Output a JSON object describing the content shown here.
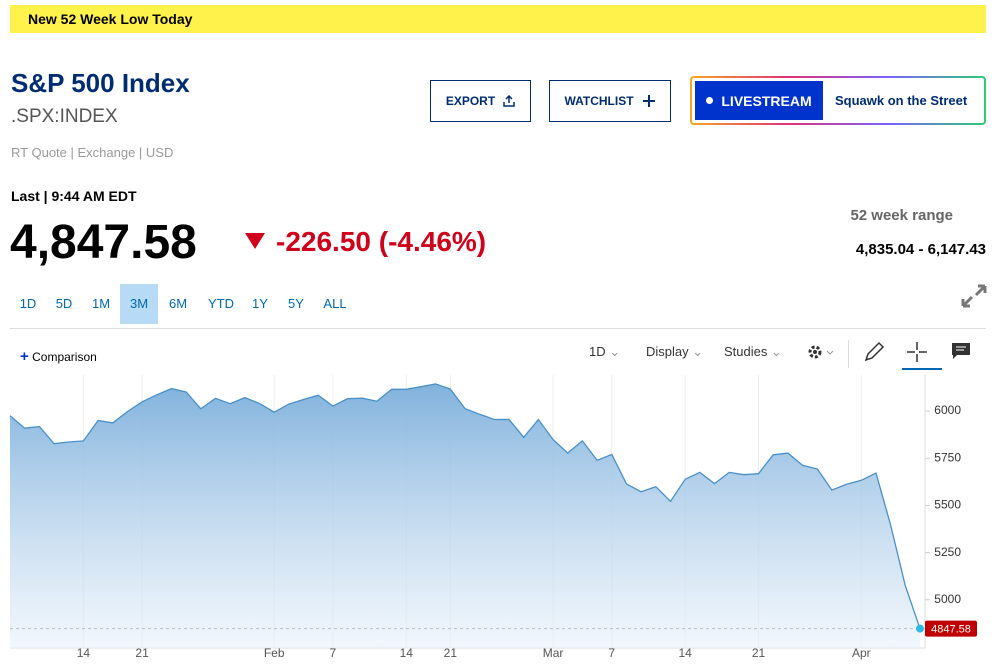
{
  "banner": "New 52 Week Low Today",
  "header": {
    "title": "S&P 500 Index",
    "symbol": ".SPX:INDEX",
    "quote_info": "RT Quote | Exchange | USD"
  },
  "buttons": {
    "export": "EXPORT",
    "watchlist": "WATCHLIST",
    "livestream": "LIVESTREAM",
    "show": "Squawk on the Street"
  },
  "quote": {
    "last_label": "Last | 9:44 AM EDT",
    "price": "4,847.58",
    "change": "-226.50",
    "change_pct": "(-4.46%)",
    "range_label": "52 week range",
    "range": "4,835.04 - 6,147.43"
  },
  "tabs": [
    "1D",
    "5D",
    "1M",
    "3M",
    "6M",
    "YTD",
    "1Y",
    "5Y",
    "ALL"
  ],
  "selected_tab": "3M",
  "toolbar": {
    "comparison": "Comparison",
    "interval": "1D",
    "display": "Display",
    "studies": "Studies"
  },
  "chart_data": {
    "type": "area",
    "color": "#4a90c8",
    "categories": [
      null,
      null,
      null,
      null,
      null,
      "14",
      null,
      null,
      null,
      "21",
      null,
      null,
      null,
      null,
      null,
      null,
      null,
      null,
      "Feb",
      null,
      null,
      null,
      "7",
      null,
      null,
      null,
      null,
      "14",
      null,
      null,
      "21",
      null,
      null,
      null,
      null,
      null,
      null,
      "Mar",
      null,
      null,
      null,
      "7",
      null,
      null,
      null,
      null,
      "14",
      null,
      null,
      null,
      null,
      "21",
      null,
      null,
      null,
      null,
      null,
      null,
      "Apr",
      null,
      null,
      null,
      null
    ],
    "values": [
      5975,
      5909,
      5918,
      5827,
      5836,
      5842,
      5950,
      5937,
      5997,
      6049,
      6086,
      6119,
      6101,
      6012,
      6067,
      6039,
      6071,
      6040,
      5994,
      6037,
      6061,
      6084,
      6026,
      6066,
      6068,
      6052,
      6115,
      6115,
      6129,
      6144,
      6117,
      6013,
      5983,
      5955,
      5956,
      5861,
      5955,
      5849,
      5778,
      5842,
      5739,
      5770,
      5614,
      5572,
      5599,
      5522,
      5639,
      5675,
      5615,
      5675,
      5663,
      5668,
      5768,
      5777,
      5712,
      5693,
      5581,
      5612,
      5633,
      5671,
      5397,
      5074,
      4847.58
    ],
    "value_labels": [
      null,
      null,
      null,
      null,
      null,
      null,
      null,
      null,
      null,
      null,
      null,
      null,
      null,
      null,
      null,
      null,
      null,
      null,
      null,
      null,
      null,
      null,
      null,
      null,
      null,
      null,
      null,
      null,
      null,
      null,
      null,
      null,
      null,
      null,
      null,
      null,
      null,
      null,
      null,
      null,
      null,
      null,
      null,
      null,
      null,
      null,
      null,
      null,
      null,
      null,
      null,
      null,
      null,
      null,
      null,
      null,
      null,
      null,
      null,
      null,
      null,
      null,
      "4847.58"
    ],
    "ylim": [
      4787,
      6191
    ],
    "yticks": [
      5000,
      5250,
      5500,
      5750,
      6000
    ]
  }
}
